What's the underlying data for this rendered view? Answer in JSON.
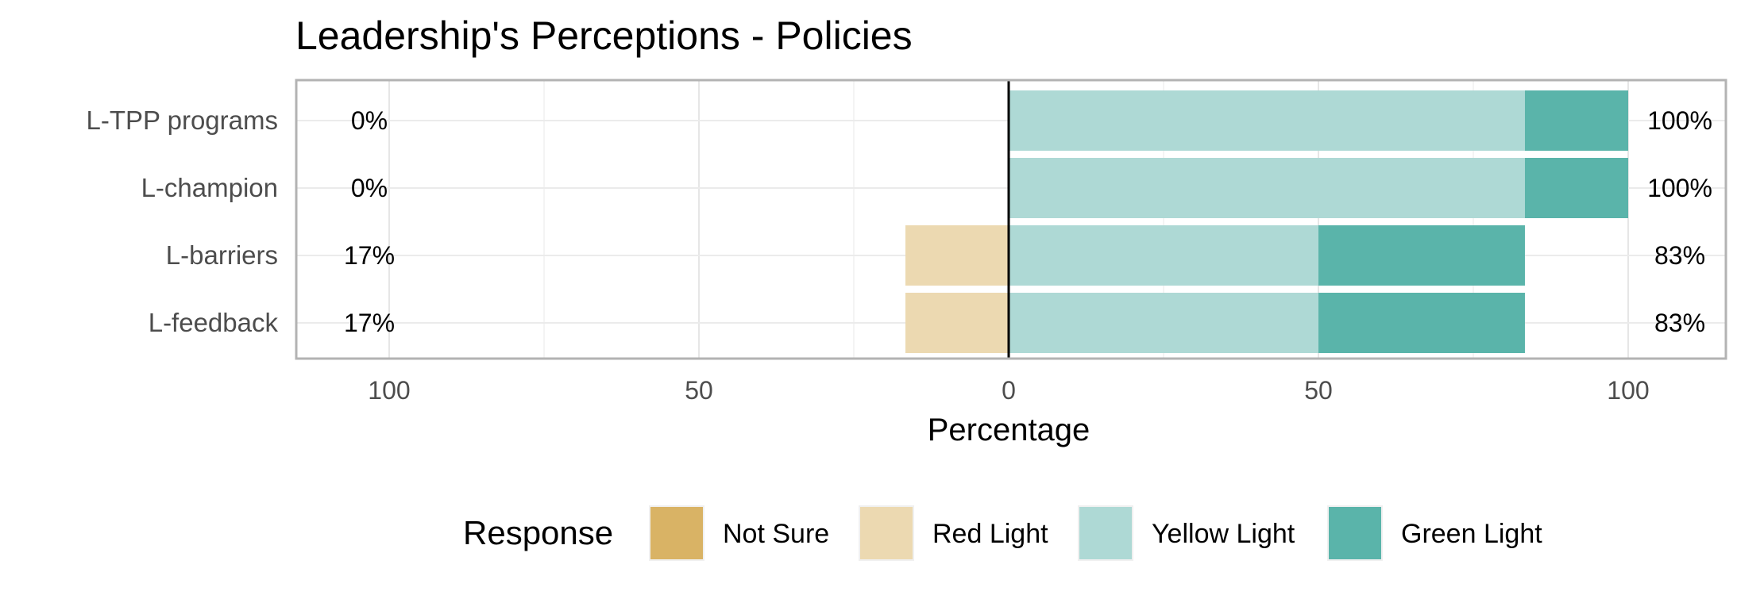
{
  "chart_data": {
    "type": "bar",
    "orientation": "horizontal",
    "stacked": "diverging",
    "title": "Leadership's Perceptions - Policies",
    "xlabel": "Percentage",
    "ylabel": "",
    "xlim": [
      -100,
      100
    ],
    "xticks": [
      -100,
      -50,
      0,
      50,
      100
    ],
    "xtick_labels": [
      "100",
      "50",
      "0",
      "50",
      "100"
    ],
    "grid": true,
    "legend_title": "Response",
    "legend_position": "bottom",
    "categories": [
      "L-TPP programs",
      "L-champion",
      "L-barriers",
      "L-feedback"
    ],
    "series": [
      {
        "name": "Not Sure",
        "color": "#d9b365",
        "side": "negative",
        "values": [
          0,
          0,
          0,
          0
        ]
      },
      {
        "name": "Red Light",
        "color": "#ecd9b1",
        "side": "negative",
        "values": [
          0,
          0,
          16.67,
          16.67
        ]
      },
      {
        "name": "Yellow Light",
        "color": "#aed9d5",
        "side": "positive",
        "values": [
          83.33,
          83.33,
          50,
          50
        ]
      },
      {
        "name": "Green Light",
        "color": "#5ab4aa",
        "side": "positive",
        "values": [
          16.67,
          16.67,
          33.33,
          33.33
        ]
      }
    ],
    "left_labels": [
      "0%",
      "0%",
      "17%",
      "17%"
    ],
    "right_labels": [
      "100%",
      "100%",
      "83%",
      "83%"
    ]
  }
}
